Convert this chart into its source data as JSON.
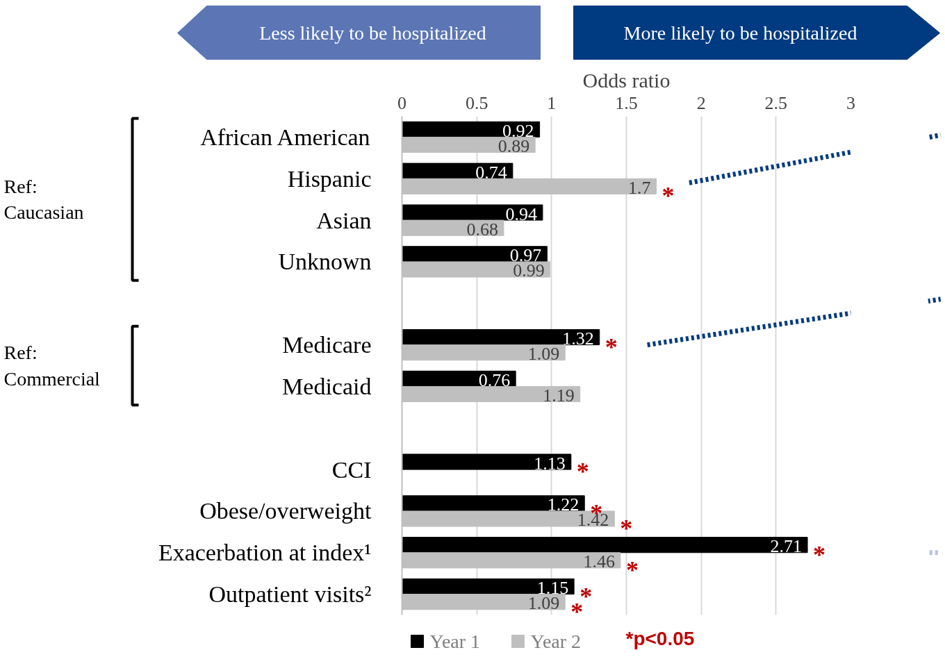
{
  "chart_data": {
    "type": "bar",
    "orientation": "horizontal",
    "xlabel": "Odds ratio",
    "categories": [
      "African American",
      "Hispanic",
      "Asian",
      "Unknown",
      null,
      "Medicare",
      "Medicaid",
      null,
      "CCI",
      "Obese/overweight",
      "Exacerbation at index¹",
      "Outpatient visits²"
    ],
    "series": [
      {
        "name": "Year 1",
        "color": "#000000",
        "values": [
          0.92,
          0.74,
          0.94,
          0.97,
          null,
          1.32,
          0.76,
          null,
          1.13,
          1.22,
          2.71,
          1.15
        ]
      },
      {
        "name": "Year 2",
        "color": "#bfbfbf",
        "values": [
          0.89,
          1.7,
          0.68,
          0.99,
          null,
          1.09,
          1.19,
          null,
          null,
          1.42,
          1.46,
          1.09
        ]
      }
    ],
    "xlim": [
      0,
      3
    ],
    "xticks": [
      0,
      0.5,
      1,
      1.5,
      2,
      2.5,
      3
    ],
    "grid": "x",
    "legend": "bottom",
    "data_labels": true,
    "annotations": [
      "Less likely to be hospitalized",
      "More likely to be hospitalized",
      "Ref: Caucasian",
      "Ref: Commercial",
      "*p<0.05",
      {
        "text": "*",
        "x": 1.7,
        "y": "Hispanic"
      },
      {
        "text": "*",
        "x": 1.32,
        "y": "Medicare"
      },
      {
        "text": "*",
        "x": 1.13,
        "y": "CCI"
      },
      {
        "text": "*",
        "x": 1.22,
        "y": "Obese/overweight"
      },
      {
        "text": "*",
        "x": 1.42,
        "y": "Obese/overweight"
      },
      {
        "text": "*",
        "x": 2.71,
        "y": "Exacerbation at index¹"
      },
      {
        "text": "*",
        "x": 1.46,
        "y": "Exacerbation at index¹"
      },
      {
        "text": "*",
        "x": 1.15,
        "y": "Outpatient visits²"
      },
      {
        "text": "*",
        "x": 1.09,
        "y": "Outpatient visits²"
      }
    ]
  }
}
